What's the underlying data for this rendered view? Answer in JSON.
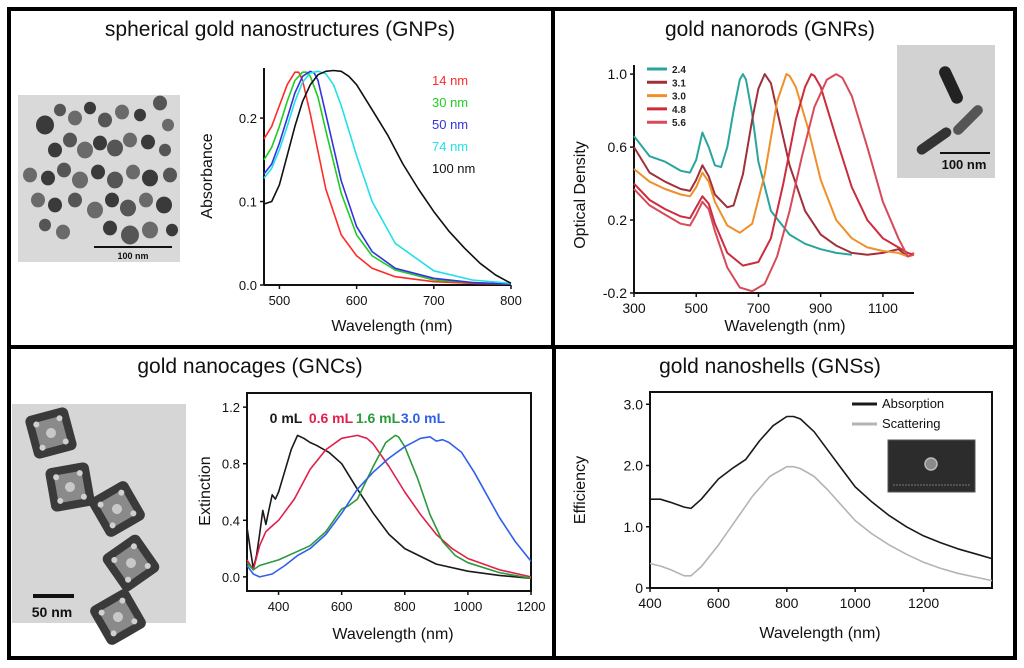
{
  "figure": {
    "panels": [
      {
        "id": "gnp",
        "title": "spherical gold nanostructures (GNPs)",
        "image_caption": "TEM image of spherical gold nanoparticles",
        "scale_bar": "100 nm"
      },
      {
        "id": "gnr",
        "title": "gold nanorods (GNRs)",
        "image_caption": "TEM image of gold nanorods",
        "scale_bar": "100 nm"
      },
      {
        "id": "gnc",
        "title": "gold nanocages (GNCs)",
        "image_caption": "TEM image of gold nanocages",
        "scale_bar": "50 nm"
      },
      {
        "id": "gns",
        "title": "gold nanoshells (GNSs)",
        "image_caption": "SEM image of a gold nanoshell"
      }
    ]
  },
  "chart_data": [
    {
      "id": "gnp",
      "type": "line",
      "title": "spherical gold nanostructures (GNPs)",
      "xlabel": "Wavelength (nm)",
      "ylabel": "Absorbance",
      "xlim": [
        480,
        800
      ],
      "ylim": [
        0,
        0.26
      ],
      "xticks": [
        500,
        600,
        700,
        800
      ],
      "xtick_labels": [
        "500",
        "600",
        "700",
        "800"
      ],
      "yticks": [
        0.0,
        0.1,
        0.2
      ],
      "ytick_labels": [
        "0.0",
        "0.1",
        "0.2"
      ],
      "legend_position": "top-right",
      "grid": false,
      "series": [
        {
          "name": "14 nm",
          "color": "#ff2a2a",
          "x": [
            480,
            490,
            500,
            510,
            520,
            525,
            530,
            540,
            550,
            560,
            580,
            600,
            620,
            650,
            700,
            750,
            800
          ],
          "y": [
            0.175,
            0.19,
            0.215,
            0.24,
            0.255,
            0.255,
            0.245,
            0.205,
            0.16,
            0.115,
            0.06,
            0.035,
            0.02,
            0.01,
            0.004,
            0.002,
            0.001
          ]
        },
        {
          "name": "30 nm",
          "color": "#22cc22",
          "x": [
            480,
            490,
            500,
            510,
            520,
            530,
            535,
            540,
            550,
            560,
            580,
            600,
            620,
            650,
            700,
            750,
            800
          ],
          "y": [
            0.15,
            0.165,
            0.19,
            0.22,
            0.245,
            0.255,
            0.255,
            0.25,
            0.225,
            0.185,
            0.11,
            0.06,
            0.035,
            0.018,
            0.006,
            0.003,
            0.001
          ]
        },
        {
          "name": "50 nm",
          "color": "#3333dd",
          "x": [
            480,
            490,
            500,
            510,
            520,
            530,
            540,
            545,
            550,
            560,
            580,
            600,
            620,
            650,
            700,
            750,
            800
          ],
          "y": [
            0.133,
            0.145,
            0.17,
            0.2,
            0.23,
            0.25,
            0.256,
            0.254,
            0.245,
            0.205,
            0.125,
            0.07,
            0.04,
            0.02,
            0.008,
            0.003,
            0.001
          ]
        },
        {
          "name": "74 nm",
          "color": "#22e0e8",
          "x": [
            480,
            490,
            500,
            510,
            520,
            530,
            540,
            550,
            560,
            570,
            580,
            600,
            620,
            650,
            700,
            750,
            800
          ],
          "y": [
            0.128,
            0.14,
            0.162,
            0.19,
            0.22,
            0.243,
            0.254,
            0.256,
            0.253,
            0.24,
            0.215,
            0.155,
            0.1,
            0.05,
            0.017,
            0.006,
            0.002
          ]
        },
        {
          "name": "100 nm",
          "color": "#111111",
          "x": [
            480,
            490,
            500,
            510,
            520,
            530,
            540,
            550,
            560,
            570,
            580,
            590,
            600,
            620,
            640,
            660,
            680,
            700,
            720,
            740,
            760,
            780,
            800
          ],
          "y": [
            0.097,
            0.1,
            0.12,
            0.155,
            0.19,
            0.22,
            0.24,
            0.252,
            0.256,
            0.257,
            0.256,
            0.25,
            0.24,
            0.21,
            0.18,
            0.145,
            0.115,
            0.088,
            0.064,
            0.044,
            0.026,
            0.012,
            0.002
          ]
        }
      ]
    },
    {
      "id": "gnr",
      "type": "line",
      "title": "gold nanorods (GNRs)",
      "xlabel": "Wavelength (nm)",
      "ylabel": "Optical Density",
      "xlim": [
        300,
        1200
      ],
      "ylim": [
        -0.2,
        1.05
      ],
      "xticks": [
        300,
        500,
        700,
        900,
        1100
      ],
      "xtick_labels": [
        "300",
        "500",
        "700",
        "900",
        "1100"
      ],
      "yticks": [
        -0.2,
        0.2,
        0.6,
        1.0
      ],
      "ytick_labels": [
        "-0.2",
        "0.2",
        "0.6",
        "1.0"
      ],
      "legend_position": "top-left",
      "grid": false,
      "series": [
        {
          "name": "2.4",
          "color": "#2aa59e",
          "x": [
            300,
            350,
            400,
            450,
            480,
            500,
            520,
            540,
            560,
            580,
            600,
            620,
            640,
            650,
            660,
            680,
            700,
            740,
            800,
            850,
            900,
            950,
            1000
          ],
          "y": [
            0.66,
            0.55,
            0.52,
            0.47,
            0.46,
            0.53,
            0.68,
            0.6,
            0.5,
            0.49,
            0.6,
            0.8,
            0.97,
            1.0,
            0.97,
            0.78,
            0.52,
            0.25,
            0.12,
            0.07,
            0.04,
            0.02,
            0.01
          ]
        },
        {
          "name": "3.1",
          "color": "#a0303a",
          "x": [
            300,
            350,
            400,
            450,
            480,
            500,
            520,
            540,
            560,
            600,
            620,
            650,
            680,
            700,
            720,
            740,
            760,
            800,
            850,
            900,
            950,
            1000,
            1050,
            1100,
            1150,
            1180,
            1200
          ],
          "y": [
            0.6,
            0.46,
            0.41,
            0.37,
            0.36,
            0.42,
            0.5,
            0.44,
            0.34,
            0.27,
            0.28,
            0.45,
            0.75,
            0.92,
            1.0,
            0.95,
            0.8,
            0.5,
            0.25,
            0.12,
            0.06,
            0.02,
            0.01,
            0.02,
            0.04,
            0.0,
            0.02
          ]
        },
        {
          "name": "3.0",
          "color": "#f0902a",
          "x": [
            300,
            350,
            400,
            450,
            480,
            500,
            520,
            540,
            560,
            600,
            640,
            680,
            720,
            760,
            790,
            800,
            820,
            860,
            900,
            950,
            1000,
            1050,
            1100,
            1150,
            1180,
            1200
          ],
          "y": [
            0.48,
            0.41,
            0.37,
            0.34,
            0.33,
            0.38,
            0.46,
            0.41,
            0.3,
            0.17,
            0.13,
            0.18,
            0.45,
            0.85,
            1.0,
            0.99,
            0.93,
            0.7,
            0.42,
            0.2,
            0.1,
            0.05,
            0.03,
            0.02,
            0.0,
            0.02
          ]
        },
        {
          "name": "4.8",
          "color": "#cc2c3c",
          "x": [
            300,
            350,
            400,
            450,
            480,
            500,
            520,
            540,
            560,
            600,
            650,
            700,
            740,
            780,
            820,
            850,
            870,
            880,
            900,
            950,
            1000,
            1050,
            1100,
            1150,
            1180,
            1200
          ],
          "y": [
            0.4,
            0.31,
            0.26,
            0.22,
            0.21,
            0.27,
            0.33,
            0.29,
            0.18,
            0.02,
            -0.05,
            -0.03,
            0.1,
            0.4,
            0.75,
            0.93,
            1.0,
            0.99,
            0.93,
            0.65,
            0.38,
            0.2,
            0.1,
            0.05,
            0.02,
            0.01
          ]
        },
        {
          "name": "5.6",
          "color": "#d84a5a",
          "x": [
            300,
            350,
            400,
            450,
            480,
            500,
            520,
            540,
            560,
            600,
            640,
            680,
            720,
            760,
            800,
            840,
            880,
            920,
            950,
            970,
            1000,
            1050,
            1100,
            1150,
            1180,
            1200
          ],
          "y": [
            0.37,
            0.28,
            0.23,
            0.18,
            0.17,
            0.23,
            0.3,
            0.26,
            0.14,
            -0.06,
            -0.17,
            -0.19,
            -0.15,
            0.0,
            0.25,
            0.55,
            0.82,
            0.97,
            1.0,
            0.98,
            0.88,
            0.6,
            0.3,
            0.1,
            0.0,
            0.01
          ]
        }
      ]
    },
    {
      "id": "gnc",
      "type": "line",
      "title": "gold nanocages (GNCs)",
      "xlabel": "Wavelength (nm)",
      "ylabel": "Extinction",
      "xlim": [
        300,
        1200
      ],
      "ylim": [
        -0.1,
        1.3
      ],
      "xticks": [
        400,
        600,
        800,
        1000,
        1200
      ],
      "xtick_labels": [
        "400",
        "600",
        "800",
        "1000",
        "1200"
      ],
      "yticks": [
        0.0,
        0.4,
        0.8,
        1.2
      ],
      "ytick_labels": [
        "0.0",
        "0.4",
        "0.8",
        "1.2"
      ],
      "legend_position": "top (inline labels)",
      "grid": false,
      "series": [
        {
          "name": "0 mL",
          "color": "#1a1a1a",
          "x": [
            300,
            310,
            320,
            330,
            340,
            350,
            360,
            370,
            380,
            390,
            400,
            420,
            440,
            460,
            480,
            500,
            520,
            560,
            600,
            650,
            700,
            750,
            800,
            900,
            1000,
            1100,
            1200
          ],
          "y": [
            0.35,
            0.2,
            0.06,
            0.15,
            0.3,
            0.47,
            0.37,
            0.48,
            0.58,
            0.55,
            0.6,
            0.75,
            0.9,
            1.0,
            0.98,
            0.95,
            0.93,
            0.88,
            0.8,
            0.62,
            0.45,
            0.3,
            0.2,
            0.09,
            0.04,
            0.01,
            -0.01
          ]
        },
        {
          "name": "0.6 mL",
          "color": "#e0204a",
          "x": [
            300,
            320,
            340,
            360,
            380,
            400,
            450,
            500,
            550,
            600,
            650,
            680,
            700,
            750,
            800,
            850,
            900,
            950,
            1000,
            1100,
            1200
          ],
          "y": [
            0.12,
            0.05,
            0.22,
            0.32,
            0.36,
            0.4,
            0.55,
            0.76,
            0.9,
            0.98,
            1.0,
            0.98,
            0.94,
            0.78,
            0.6,
            0.44,
            0.3,
            0.2,
            0.13,
            0.05,
            0.0
          ]
        },
        {
          "name": "1.6 mL",
          "color": "#2a9a3a",
          "x": [
            300,
            320,
            340,
            400,
            450,
            500,
            550,
            600,
            620,
            650,
            700,
            740,
            770,
            780,
            800,
            840,
            880,
            920,
            960,
            1000,
            1100,
            1200
          ],
          "y": [
            0.1,
            0.05,
            0.08,
            0.12,
            0.17,
            0.22,
            0.32,
            0.48,
            0.5,
            0.55,
            0.78,
            0.95,
            1.0,
            0.99,
            0.92,
            0.7,
            0.44,
            0.25,
            0.15,
            0.1,
            0.03,
            -0.01
          ]
        },
        {
          "name": "3.0 mL",
          "color": "#3060e8",
          "x": [
            300,
            320,
            340,
            380,
            420,
            460,
            500,
            550,
            600,
            650,
            700,
            750,
            800,
            850,
            880,
            900,
            920,
            940,
            980,
            1020,
            1060,
            1100,
            1150,
            1200
          ],
          "y": [
            0.08,
            0.02,
            0.0,
            0.02,
            0.08,
            0.15,
            0.2,
            0.3,
            0.45,
            0.62,
            0.74,
            0.84,
            0.92,
            0.98,
            0.99,
            0.96,
            0.97,
            0.95,
            0.88,
            0.74,
            0.58,
            0.42,
            0.25,
            0.11
          ]
        }
      ]
    },
    {
      "id": "gns",
      "type": "line",
      "title": "gold nanoshells (GNSs)",
      "xlabel": "Wavelength (nm)",
      "ylabel": "Efficiency",
      "xlim": [
        400,
        1400
      ],
      "ylim": [
        0,
        3.2
      ],
      "xticks": [
        400,
        600,
        800,
        1000,
        1200
      ],
      "xtick_labels": [
        "400",
        "600",
        "800",
        "1000",
        "1200"
      ],
      "yticks": [
        0,
        1.0,
        2.0,
        3.0
      ],
      "ytick_labels": [
        "0",
        "1.0",
        "2.0",
        "3.0"
      ],
      "legend_position": "top-right",
      "grid": false,
      "series": [
        {
          "name": "Absorption",
          "color": "#1a1a1a",
          "x": [
            400,
            430,
            460,
            500,
            520,
            550,
            600,
            640,
            680,
            720,
            760,
            800,
            820,
            840,
            880,
            920,
            960,
            1000,
            1050,
            1100,
            1150,
            1200,
            1250,
            1300,
            1350,
            1400
          ],
          "y": [
            1.45,
            1.45,
            1.4,
            1.32,
            1.3,
            1.45,
            1.78,
            1.95,
            2.1,
            2.4,
            2.65,
            2.8,
            2.8,
            2.76,
            2.55,
            2.25,
            1.95,
            1.65,
            1.4,
            1.18,
            1.0,
            0.85,
            0.74,
            0.64,
            0.56,
            0.48
          ]
        },
        {
          "name": "Scattering",
          "color": "#b4b4b4",
          "x": [
            400,
            430,
            460,
            500,
            520,
            550,
            600,
            650,
            700,
            750,
            800,
            820,
            840,
            880,
            920,
            960,
            1000,
            1050,
            1100,
            1150,
            1200,
            1250,
            1300,
            1350,
            1400
          ],
          "y": [
            0.4,
            0.36,
            0.3,
            0.2,
            0.2,
            0.35,
            0.7,
            1.1,
            1.5,
            1.82,
            1.98,
            1.98,
            1.95,
            1.82,
            1.6,
            1.35,
            1.1,
            0.88,
            0.7,
            0.55,
            0.42,
            0.32,
            0.24,
            0.18,
            0.12
          ]
        }
      ]
    }
  ]
}
